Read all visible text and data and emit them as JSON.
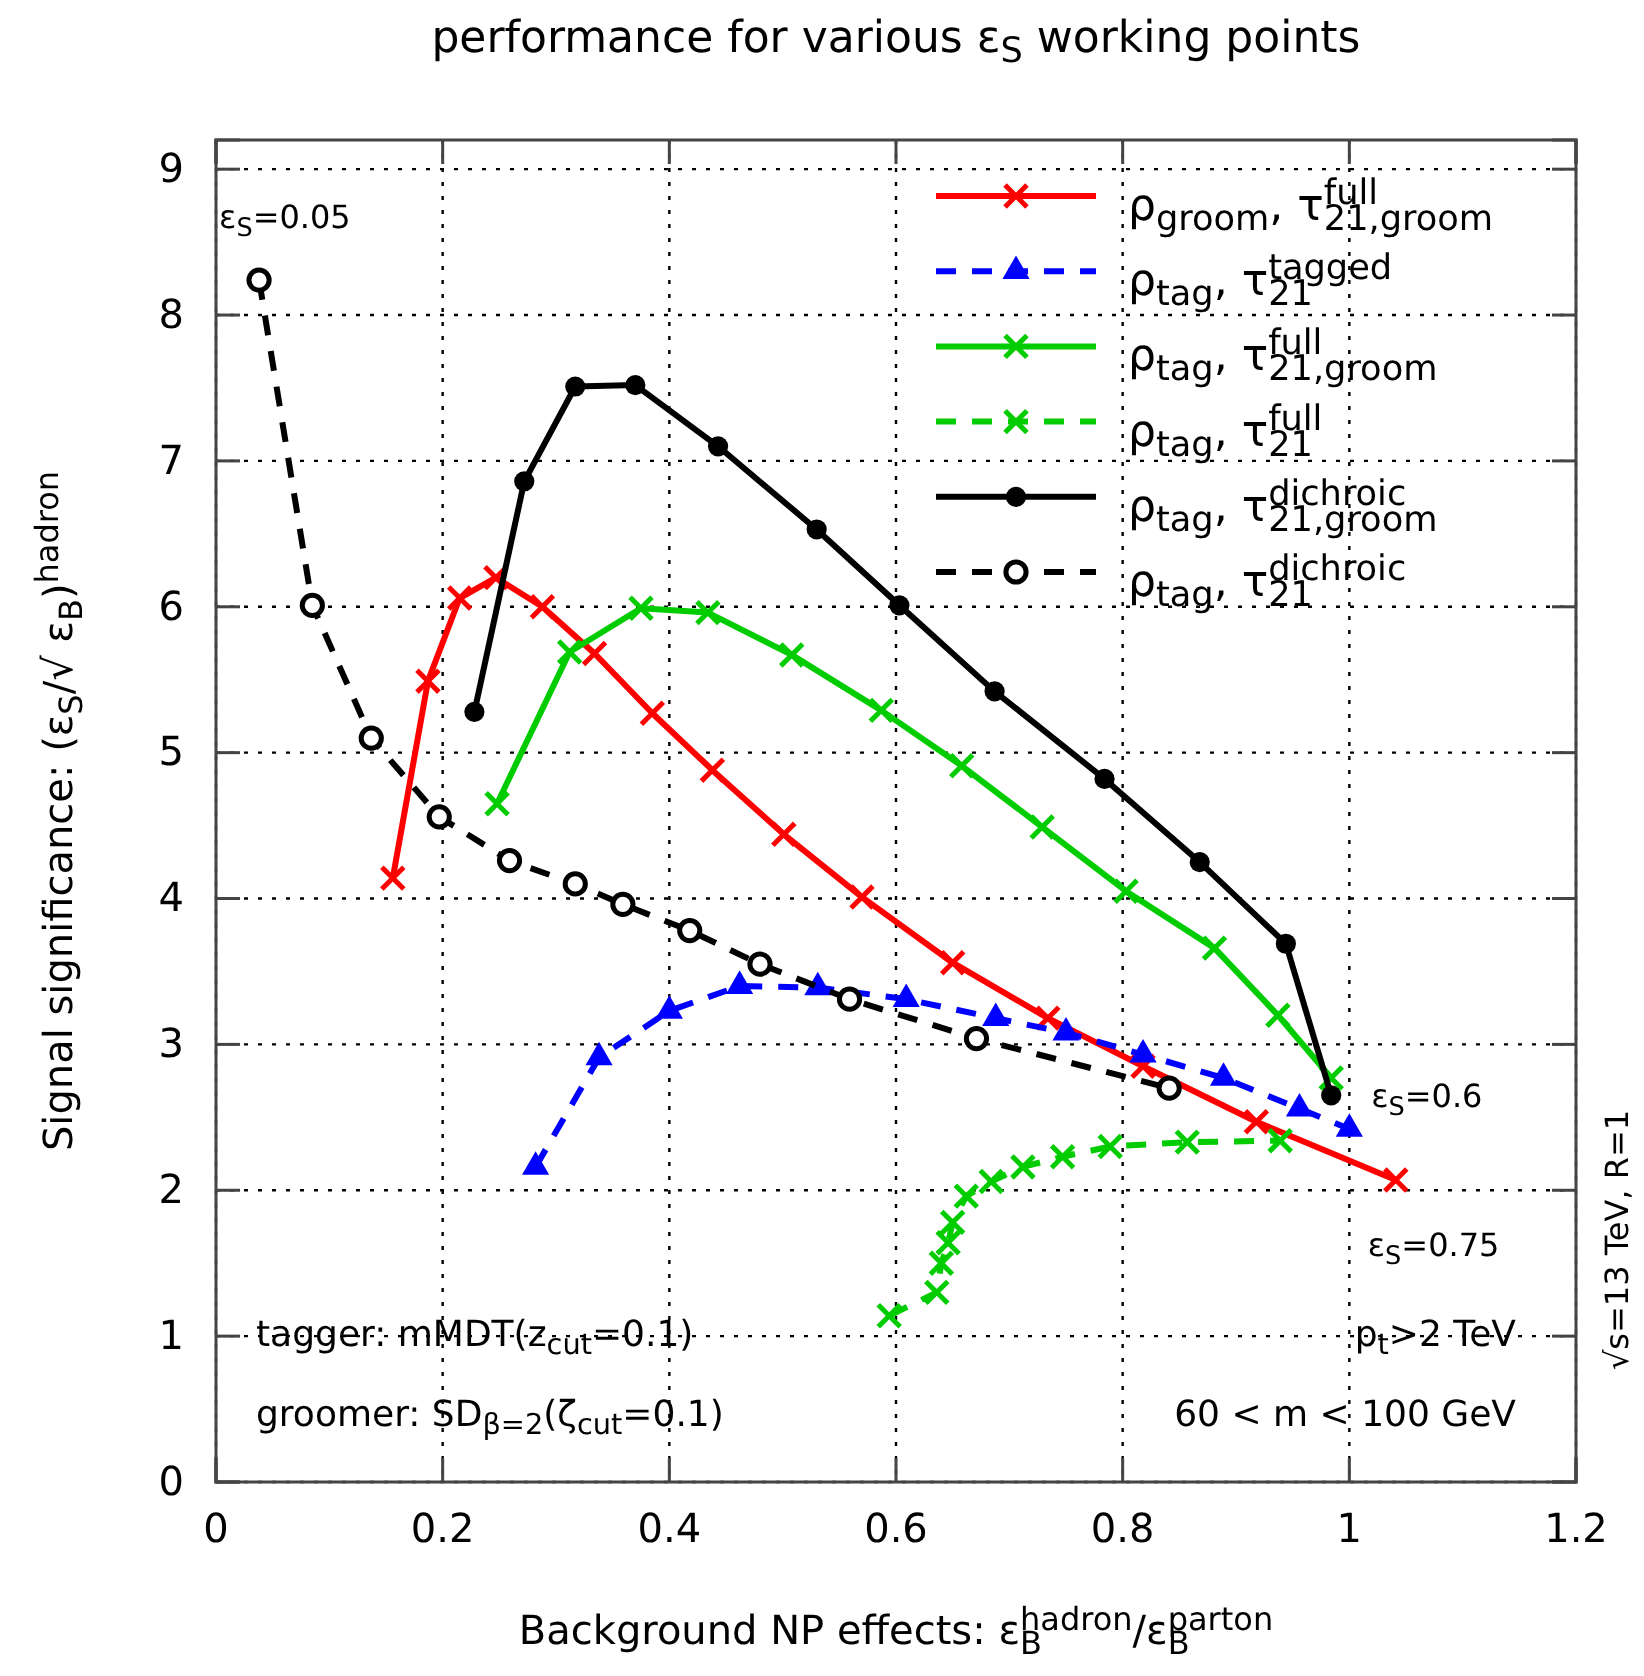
{
  "chart_data": {
    "type": "line",
    "title": "performance for various ε$_{S}$ working points",
    "xlabel": "Background NP effects: ε$_{B}$$^{hadron}$/ε$_{B}$$^{parton}$",
    "ylabel": "Signal significance: (ε$_{S}$/√ ε$_{B}$)$^{hadron}$",
    "xlim": [
      0,
      1.2
    ],
    "xticks": [
      0,
      0.2,
      0.4,
      0.6,
      0.8,
      1,
      1.2
    ],
    "ylim": [
      0,
      9.2
    ],
    "yticks": [
      0,
      1,
      2,
      3,
      4,
      5,
      6,
      7,
      8,
      9
    ],
    "grid": true,
    "legend": "top right",
    "series": [
      {
        "name": "ρ$_{groom}$, τ$_{21,groom}$$^{full}$",
        "color": "#ff0000",
        "marker": "cross",
        "line_style": "solid",
        "x": [
          0.156,
          0.187,
          0.215,
          0.247,
          0.288,
          0.334,
          0.385,
          0.438,
          0.501,
          0.57,
          0.65,
          0.734,
          0.818,
          0.918,
          1.041
        ],
        "values": [
          4.14,
          5.49,
          6.06,
          6.2,
          6.0,
          5.68,
          5.27,
          4.88,
          4.44,
          4.01,
          3.56,
          3.18,
          2.85,
          2.47,
          2.07
        ]
      },
      {
        "name": "ρ$_{tag}$, τ$_{21}$$^{tagged}$",
        "color": "#0000ff",
        "marker": "triangle",
        "line_style": "dashed",
        "x": [
          0.282,
          0.338,
          0.4,
          0.462,
          0.531,
          0.609,
          0.688,
          0.75,
          0.818,
          0.889,
          0.956,
          1.0
        ],
        "values": [
          2.16,
          2.91,
          3.23,
          3.4,
          3.39,
          3.31,
          3.18,
          3.08,
          2.93,
          2.77,
          2.56,
          2.42
        ]
      },
      {
        "name": "ρ$_{tag}$, τ$_{21,groom}$$^{full}$",
        "color": "#00cc00",
        "marker": "cross",
        "line_style": "solid",
        "x": [
          0.248,
          0.312,
          0.375,
          0.434,
          0.508,
          0.587,
          0.658,
          0.729,
          0.803,
          0.881,
          0.937,
          0.984
        ],
        "values": [
          4.65,
          5.69,
          5.99,
          5.96,
          5.67,
          5.29,
          4.91,
          4.49,
          4.05,
          3.66,
          3.2,
          2.77
        ]
      },
      {
        "name": "ρ$_{tag}$, τ$_{21}$$^{full}$",
        "color": "#00cc00",
        "marker": "cross",
        "line_style": "dashed",
        "x": [
          0.594,
          0.636,
          0.64,
          0.646,
          0.65,
          0.662,
          0.684,
          0.712,
          0.747,
          0.789,
          0.857,
          0.939
        ],
        "values": [
          1.14,
          1.3,
          1.5,
          1.64,
          1.78,
          1.96,
          2.06,
          2.16,
          2.23,
          2.3,
          2.33,
          2.34
        ]
      },
      {
        "name": "ρ$_{tag}$, τ$_{21,groom}$$^{dichroic}$",
        "color": "#000000",
        "marker": "circle",
        "line_style": "solid",
        "x": [
          0.228,
          0.272,
          0.317,
          0.37,
          0.443,
          0.53,
          0.603,
          0.687,
          0.784,
          0.868,
          0.944,
          0.984
        ],
        "values": [
          5.28,
          6.86,
          7.51,
          7.52,
          7.1,
          6.53,
          6.01,
          5.42,
          4.82,
          4.25,
          3.69,
          2.65
        ]
      },
      {
        "name": "ρ$_{tag}$, τ$_{21}$$^{dichroic}$",
        "color": "#000000",
        "marker": "circle",
        "line_style": "dashed",
        "x": [
          0.038,
          0.085,
          0.137,
          0.197,
          0.259,
          0.317,
          0.359,
          0.418,
          0.48,
          0.559,
          0.671,
          0.841
        ],
        "values": [
          8.24,
          6.01,
          5.1,
          4.56,
          4.26,
          4.1,
          3.96,
          3.78,
          3.55,
          3.31,
          3.04,
          2.7
        ]
      }
    ],
    "annotations": [
      {
        "text": "ε$_{S}$=0.05",
        "x": 0.038,
        "y": 8.24
      },
      {
        "text": "ε$_{S}$=0.6",
        "x": 0.984,
        "y": 2.65
      },
      {
        "text": "ε$_{S}$=0.75",
        "x": 1.041,
        "y": 2.07
      },
      "tagger: mMDT(z$_{cut}$=0.1)",
      "groomer: SD$_{β=2}$(ζ$_{cut}$=0.1)",
      "p$_{t}$>2 TeV",
      "60 < m < 100 GeV",
      "√s=13 TeV, R=1"
    ]
  }
}
